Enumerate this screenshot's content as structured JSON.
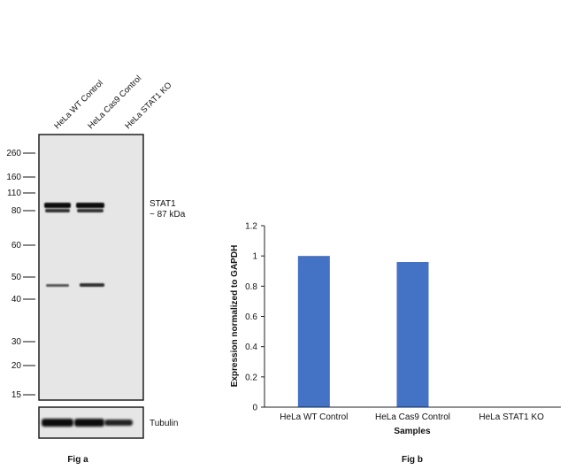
{
  "western_blot": {
    "lanes": [
      "HeLa WT Control",
      "HeLa Cas9 Control",
      "HeLa STAT1 KO"
    ],
    "mw_markers": [
      "260",
      "160",
      "110",
      "80",
      "60",
      "50",
      "40",
      "30",
      "20",
      "15"
    ],
    "target_label": "STAT1",
    "target_size": "~ 87 kDa",
    "loading_control_label": "Tubulin",
    "caption": "Fig a"
  },
  "chart_data": {
    "type": "bar",
    "categories": [
      "HeLa WT Control",
      "HeLa Cas9 Control",
      "HeLa STAT1 KO"
    ],
    "series": [
      {
        "values": [
          1.0,
          0.96,
          0.0
        ]
      }
    ],
    "ylabel": "Expression normalized to GAPDH",
    "xlabel": "Samples",
    "ylim": [
      0,
      1.2
    ],
    "yticks": [
      "0",
      "0.2",
      "0.4",
      "0.6",
      "0.8",
      "1",
      "1.2"
    ],
    "grid": false,
    "bar_color": "#4472C4",
    "caption": "Fig b"
  }
}
